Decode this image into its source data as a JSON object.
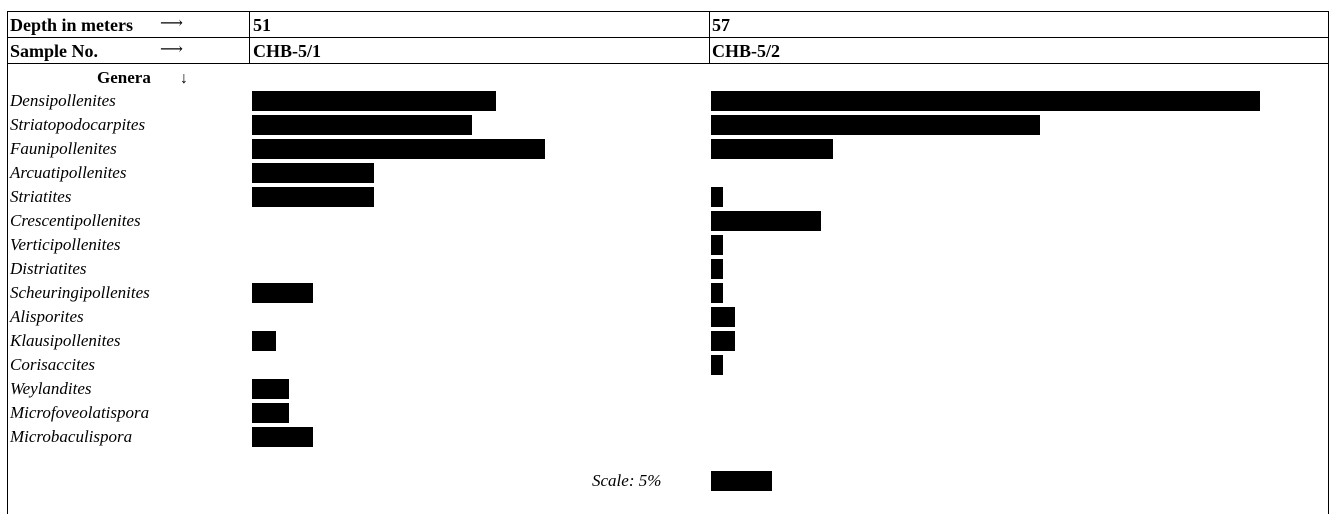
{
  "header": {
    "depth_label": "Depth in meters",
    "sample_label": "Sample No.",
    "genera_label": "Genera",
    "arrow_right": "⟶",
    "arrow_down": "↓"
  },
  "scale": {
    "label": "Scale: 5%",
    "value": 5
  },
  "chart_data": {
    "type": "bar",
    "units": "%",
    "columns": [
      {
        "depth": "51",
        "sample": "CHB-5/1"
      },
      {
        "depth": "57",
        "sample": "CHB-5/2"
      }
    ],
    "categories": [
      "Densipollenites",
      "Striatopodocarpites",
      "Faunipollenites",
      "Arcuatipollenites",
      "Striatites",
      "Crescentipollenites",
      "Verticipollenites",
      "Distriatites",
      "Scheuringipollenites",
      "Alisporites",
      "Klausipollenites",
      "Corisaccites",
      "Weylandites",
      "Microfoveolatispora",
      "Microbaculispora"
    ],
    "series": [
      {
        "name": "CHB-5/1",
        "values": [
          20,
          18,
          24,
          10,
          10,
          0,
          0,
          0,
          5,
          0,
          2,
          0,
          3,
          3,
          5
        ]
      },
      {
        "name": "CHB-5/2",
        "values": [
          45,
          27,
          10,
          0,
          1,
          9,
          1,
          1,
          1,
          2,
          2,
          1,
          0,
          0,
          0
        ]
      }
    ]
  }
}
